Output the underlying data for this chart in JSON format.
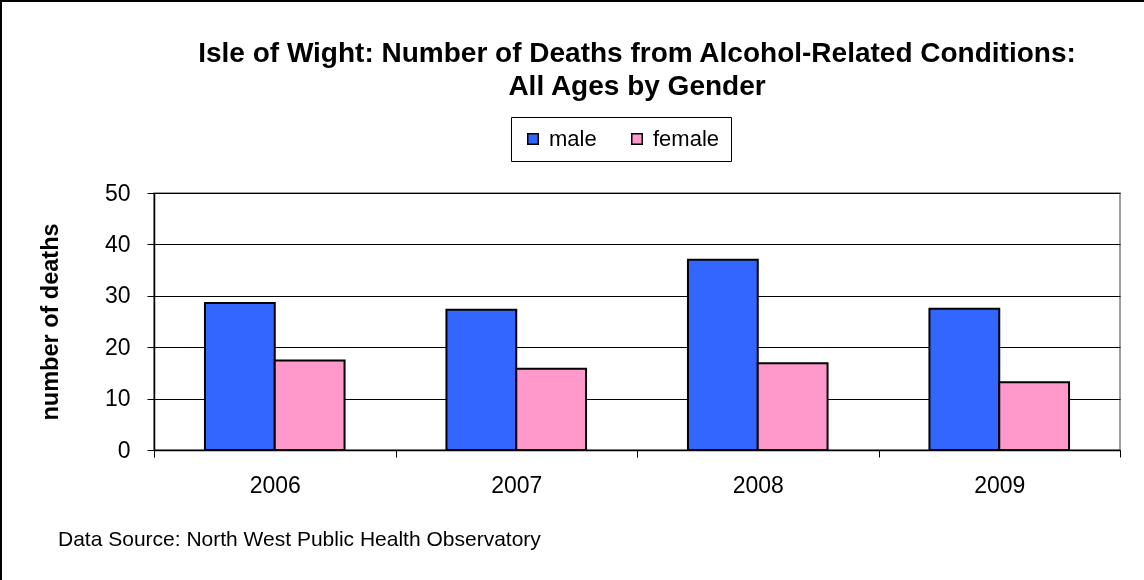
{
  "chart_data": {
    "type": "bar",
    "title": "Isle of Wight: Number of Deaths from Alcohol-Related Conditions:\nAll Ages by Gender",
    "ylabel": "number of deaths",
    "annotations": [
      "Data Source: North West Public Health Observatory"
    ],
    "categories": [
      "2006",
      "2007",
      "2008",
      "2009"
    ],
    "series": [
      {
        "name": "male",
        "color": "#3366ff",
        "values": [
          28.6,
          27.3,
          37.0,
          27.5
        ]
      },
      {
        "name": "female",
        "color": "#ff99cc",
        "values": [
          17.4,
          15.8,
          16.9,
          13.2
        ]
      }
    ],
    "ylim": [
      0,
      50
    ],
    "yticks": [
      0,
      10,
      20,
      30,
      40,
      50
    ],
    "grid": "y",
    "legend": "top"
  }
}
